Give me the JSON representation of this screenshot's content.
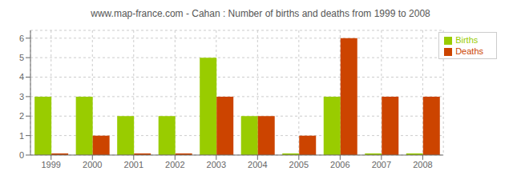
{
  "chart_data": {
    "type": "bar",
    "title": "www.map-france.com - Cahan : Number of births and deaths from 1999 to 2008",
    "categories": [
      "1999",
      "2000",
      "2001",
      "2002",
      "2003",
      "2004",
      "2005",
      "2006",
      "2007",
      "2008"
    ],
    "series": [
      {
        "name": "Births",
        "color": "#99cc00",
        "values": [
          3,
          3,
          2,
          2,
          5,
          2,
          0,
          3,
          0,
          0
        ]
      },
      {
        "name": "Deaths",
        "color": "#cc4400",
        "values": [
          0,
          1,
          0,
          0,
          3,
          2,
          1,
          6,
          3,
          3
        ]
      }
    ],
    "ylim": [
      0,
      6.4
    ],
    "yticks": [
      0,
      1,
      2,
      3,
      4,
      5,
      6
    ],
    "grid": true,
    "legend": "upper right"
  }
}
